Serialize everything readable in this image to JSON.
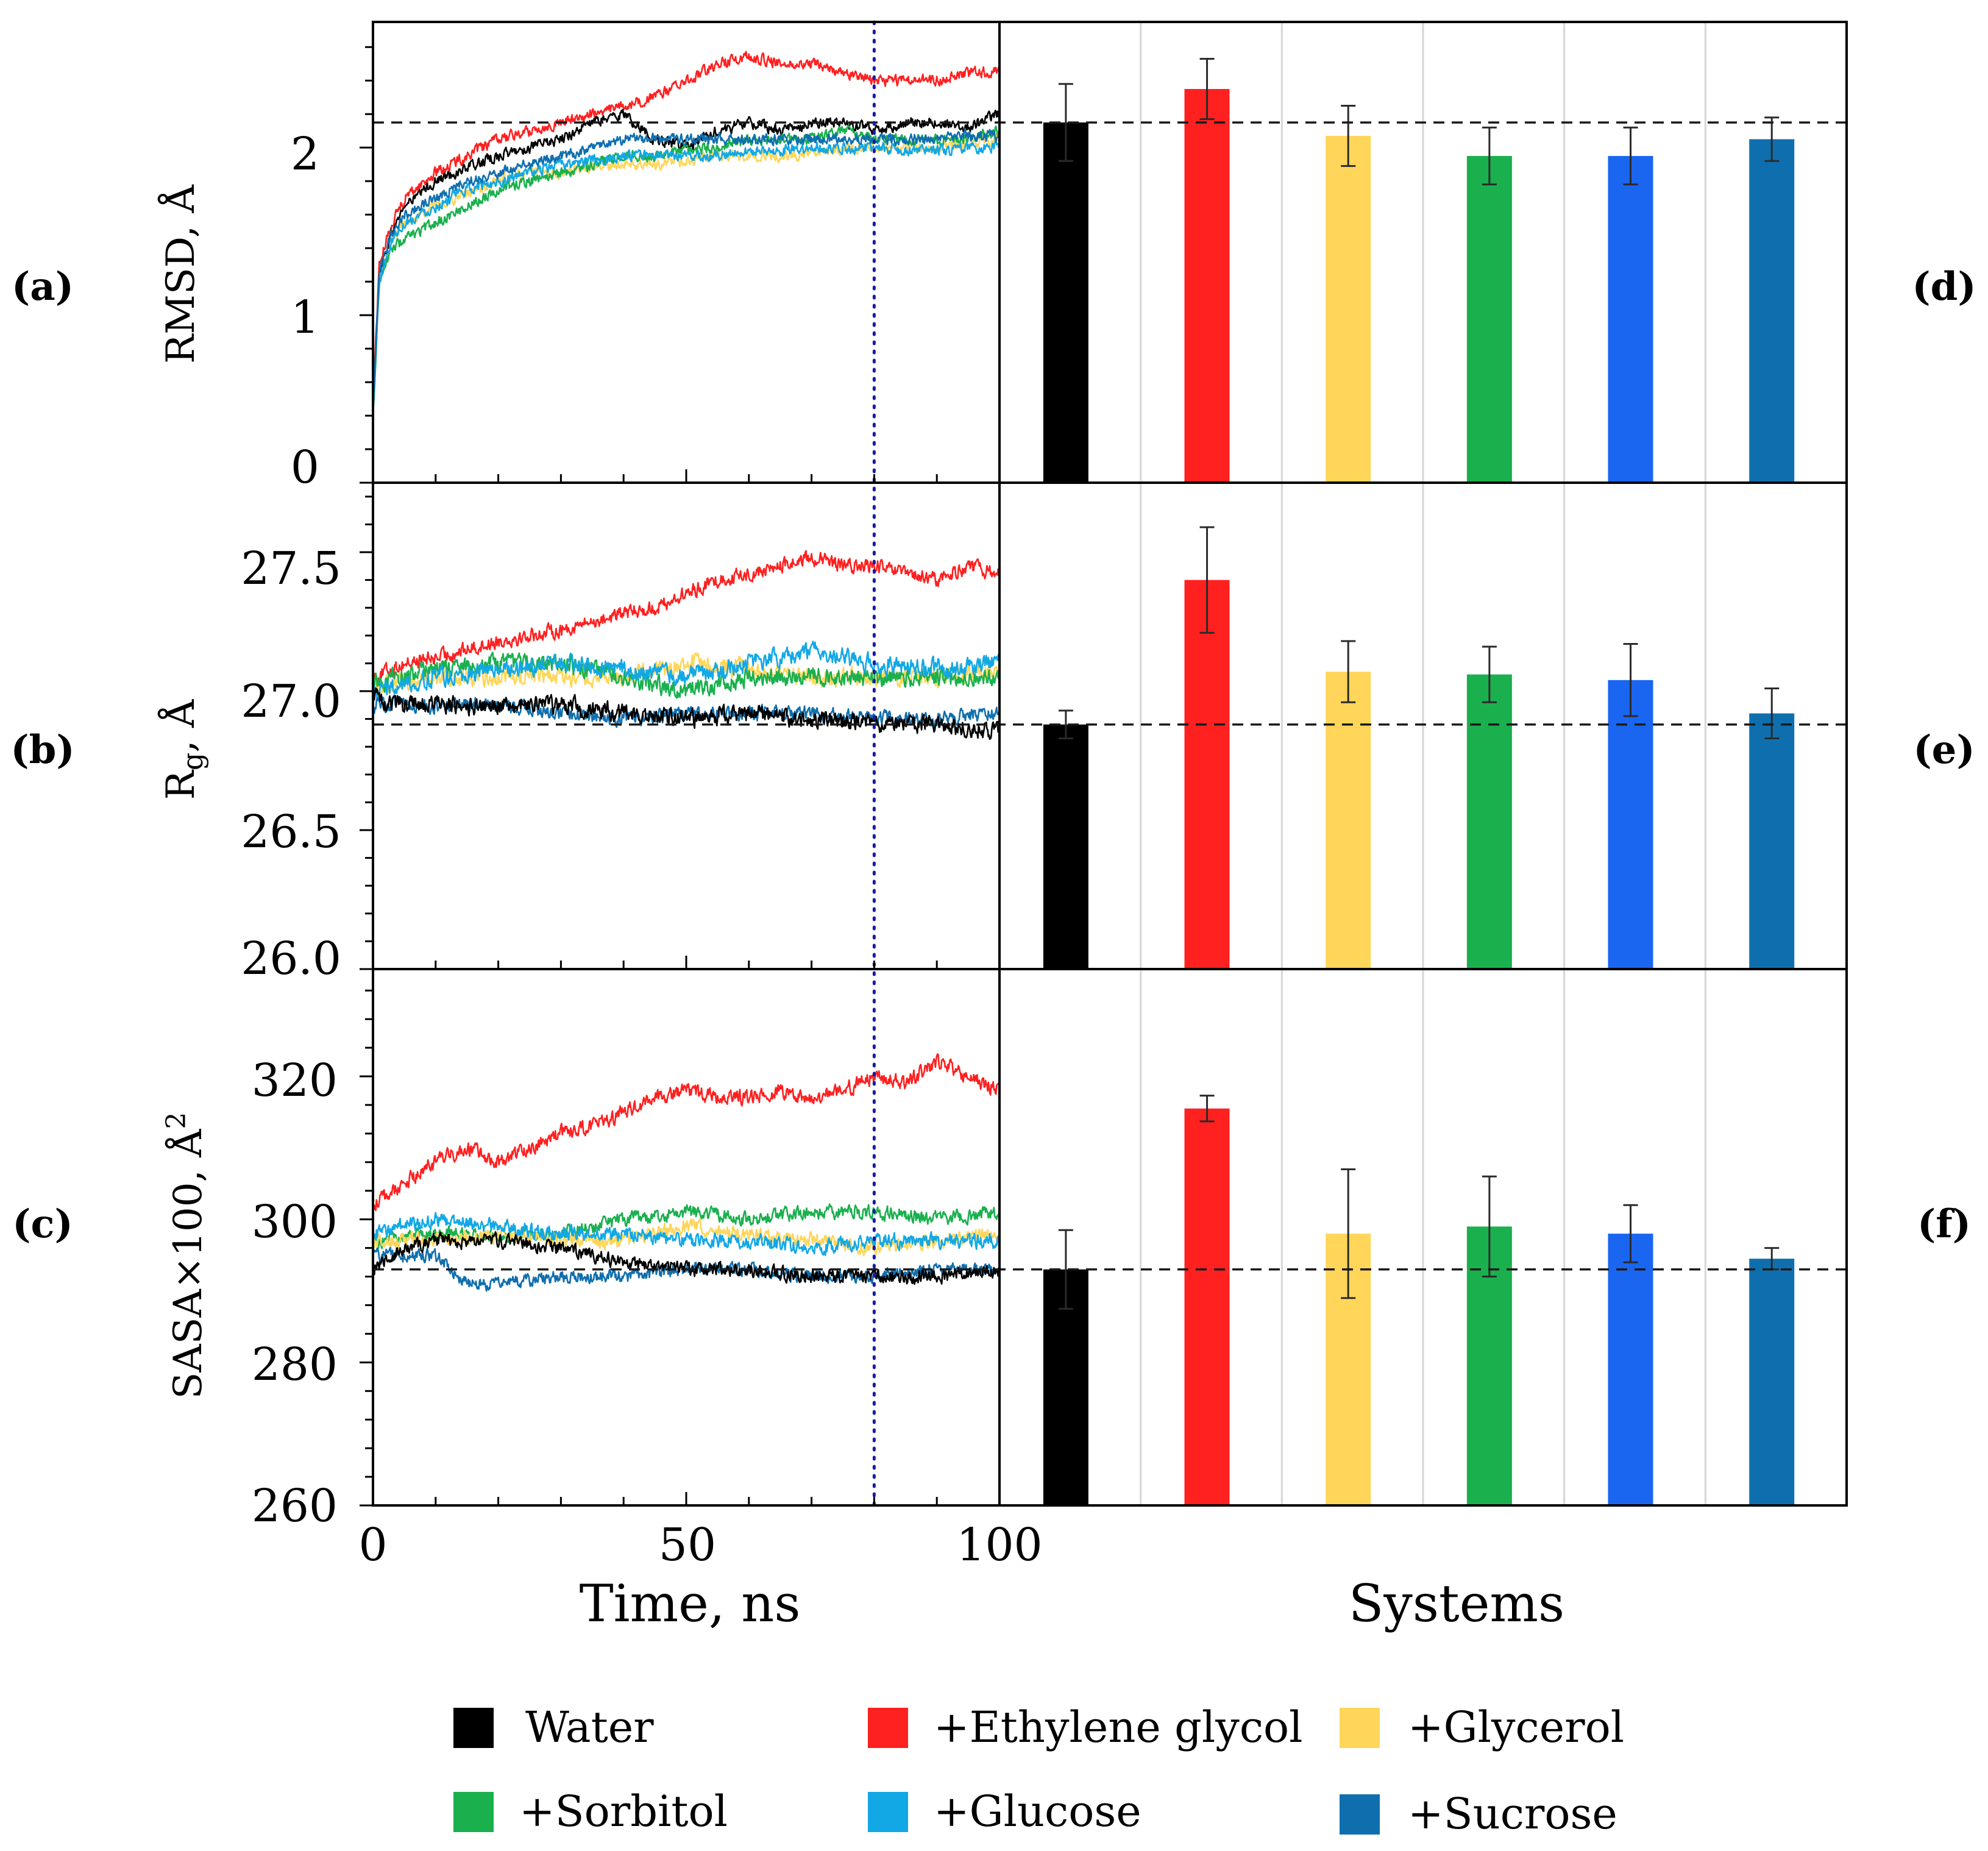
{
  "legend": [
    {
      "key": "water",
      "label": "Water",
      "color": "#000000"
    },
    {
      "key": "eg",
      "label": "+Ethylene glycol",
      "color": "#ff2020"
    },
    {
      "key": "glycerol",
      "label": "+Glycerol",
      "color": "#ffd65a"
    },
    {
      "key": "sorbitol",
      "label": "+Sorbitol",
      "color": "#1ab04e"
    },
    {
      "key": "glucose",
      "label": "+Glucose",
      "color": "#12a8e6"
    },
    {
      "key": "sucrose",
      "label": "+Sucrose",
      "color": "#0f6fae"
    }
  ],
  "bar_colors": [
    "#000000",
    "#ff2020",
    "#ffd65a",
    "#1ab04e",
    "#1a66f0",
    "#0f6fae"
  ],
  "x_axis": {
    "label": "Time, ns",
    "ticks": [
      "0",
      "50",
      "100"
    ],
    "tick_values": [
      0,
      50,
      100
    ],
    "range": [
      0,
      100
    ],
    "vline": 80
  },
  "bar_axis": {
    "label": "Systems"
  },
  "chart_data": [
    {
      "id": "a",
      "panel_label": "(a)",
      "type": "line",
      "ylabel": "RMSD, Å",
      "ylim": [
        0,
        2.75
      ],
      "yticks": [
        0,
        1,
        2
      ],
      "ytick_labels": [
        "0",
        "1",
        "2"
      ],
      "ref_line": 2.15,
      "series": [
        {
          "name": "Water",
          "x": [
            0,
            1,
            3,
            5,
            10,
            15,
            20,
            25,
            30,
            35,
            40,
            45,
            50,
            55,
            60,
            65,
            70,
            75,
            80,
            85,
            90,
            95,
            100
          ],
          "y": [
            0.4,
            1.25,
            1.5,
            1.65,
            1.8,
            1.88,
            1.95,
            2.0,
            2.05,
            2.15,
            2.2,
            2.05,
            2.0,
            2.1,
            2.15,
            2.1,
            2.15,
            2.15,
            2.1,
            2.15,
            2.15,
            2.12,
            2.2
          ],
          "noise": 0.05
        },
        {
          "name": "+Ethylene glycol",
          "x": [
            0,
            1,
            3,
            5,
            10,
            15,
            20,
            25,
            30,
            35,
            40,
            45,
            50,
            55,
            60,
            65,
            70,
            75,
            80,
            85,
            90,
            95,
            100
          ],
          "y": [
            0.5,
            1.3,
            1.55,
            1.7,
            1.85,
            1.95,
            2.05,
            2.1,
            2.15,
            2.2,
            2.25,
            2.3,
            2.4,
            2.5,
            2.55,
            2.5,
            2.5,
            2.45,
            2.4,
            2.4,
            2.4,
            2.45,
            2.45
          ],
          "noise": 0.05
        },
        {
          "name": "+Glycerol",
          "x": [
            0,
            1,
            3,
            5,
            10,
            15,
            20,
            25,
            30,
            35,
            40,
            45,
            50,
            55,
            60,
            65,
            70,
            75,
            80,
            85,
            90,
            95,
            100
          ],
          "y": [
            0.4,
            1.2,
            1.45,
            1.55,
            1.65,
            1.72,
            1.8,
            1.85,
            1.85,
            1.88,
            1.9,
            1.9,
            1.92,
            1.95,
            1.95,
            1.95,
            1.97,
            1.98,
            2.0,
            2.0,
            2.0,
            2.02,
            2.05
          ],
          "noise": 0.05
        },
        {
          "name": "+Sorbitol",
          "x": [
            0,
            1,
            3,
            5,
            10,
            15,
            20,
            25,
            30,
            35,
            40,
            45,
            50,
            55,
            60,
            65,
            70,
            75,
            80,
            85,
            90,
            95,
            100
          ],
          "y": [
            0.4,
            1.2,
            1.4,
            1.45,
            1.55,
            1.65,
            1.75,
            1.8,
            1.85,
            1.9,
            1.95,
            1.95,
            1.98,
            2.0,
            2.05,
            2.05,
            2.05,
            2.1,
            2.05,
            2.05,
            2.05,
            2.05,
            2.1
          ],
          "noise": 0.05
        },
        {
          "name": "+Glucose",
          "x": [
            0,
            1,
            3,
            5,
            10,
            15,
            20,
            25,
            30,
            35,
            40,
            45,
            50,
            55,
            60,
            65,
            70,
            75,
            80,
            85,
            90,
            95,
            100
          ],
          "y": [
            0.4,
            1.2,
            1.45,
            1.55,
            1.65,
            1.75,
            1.8,
            1.85,
            1.9,
            1.92,
            1.95,
            1.95,
            1.95,
            1.95,
            1.98,
            1.98,
            2.0,
            2.0,
            2.0,
            1.98,
            1.98,
            2.0,
            2.0
          ],
          "noise": 0.05
        },
        {
          "name": "+Sucrose",
          "x": [
            0,
            1,
            3,
            5,
            10,
            15,
            20,
            25,
            30,
            35,
            40,
            45,
            50,
            55,
            60,
            65,
            70,
            75,
            80,
            85,
            90,
            95,
            100
          ],
          "y": [
            0.4,
            1.25,
            1.5,
            1.6,
            1.7,
            1.8,
            1.85,
            1.9,
            1.95,
            2.0,
            2.05,
            2.05,
            2.05,
            2.05,
            2.05,
            2.05,
            2.05,
            2.05,
            2.05,
            2.05,
            2.05,
            2.07,
            2.07
          ],
          "noise": 0.05
        }
      ]
    },
    {
      "id": "b",
      "panel_label": "(b)",
      "type": "line",
      "ylabel": "Rg, Å",
      "ylabel_main": "R",
      "ylabel_sub": "g",
      "ylabel_tail": ", Å",
      "ylim": [
        26.0,
        27.75
      ],
      "yticks": [
        26.0,
        26.5,
        27.0,
        27.5
      ],
      "ytick_labels": [
        "26.0",
        "26.5",
        "27.0",
        "27.5"
      ],
      "ref_line": 26.88,
      "series": [
        {
          "name": "+Ethylene glycol",
          "x": [
            0,
            5,
            10,
            15,
            20,
            25,
            30,
            35,
            40,
            45,
            50,
            55,
            60,
            65,
            70,
            75,
            80,
            85,
            90,
            95,
            100
          ],
          "y": [
            27.05,
            27.1,
            27.12,
            27.15,
            27.18,
            27.2,
            27.22,
            27.25,
            27.28,
            27.3,
            27.35,
            27.4,
            27.42,
            27.45,
            27.48,
            27.45,
            27.45,
            27.42,
            27.4,
            27.45,
            27.42
          ],
          "noise": 0.04
        },
        {
          "name": "+Glycerol",
          "x": [
            0,
            10,
            20,
            30,
            40,
            50,
            60,
            70,
            80,
            90,
            100
          ],
          "y": [
            27.02,
            27.05,
            27.05,
            27.05,
            27.05,
            27.1,
            27.08,
            27.05,
            27.05,
            27.05,
            27.08
          ],
          "noise": 0.05
        },
        {
          "name": "+Sorbitol",
          "x": [
            0,
            10,
            20,
            30,
            40,
            50,
            60,
            70,
            80,
            90,
            100
          ],
          "y": [
            27.03,
            27.08,
            27.1,
            27.1,
            27.05,
            27.0,
            27.05,
            27.05,
            27.05,
            27.05,
            27.05
          ],
          "noise": 0.05
        },
        {
          "name": "+Glucose",
          "x": [
            0,
            10,
            20,
            30,
            40,
            50,
            60,
            70,
            80,
            90,
            100
          ],
          "y": [
            27.0,
            27.05,
            27.08,
            27.1,
            27.08,
            27.05,
            27.1,
            27.15,
            27.1,
            27.08,
            27.1
          ],
          "noise": 0.05
        },
        {
          "name": "+Sucrose",
          "x": [
            0,
            10,
            20,
            30,
            40,
            50,
            60,
            70,
            80,
            90,
            100
          ],
          "y": [
            26.95,
            26.95,
            26.95,
            26.92,
            26.9,
            26.92,
            26.92,
            26.92,
            26.9,
            26.9,
            26.92
          ],
          "noise": 0.04
        },
        {
          "name": "Water",
          "x": [
            0,
            5,
            10,
            20,
            30,
            40,
            50,
            60,
            70,
            80,
            90,
            100
          ],
          "y": [
            26.98,
            26.95,
            26.95,
            26.95,
            26.95,
            26.92,
            26.9,
            26.92,
            26.9,
            26.88,
            26.88,
            26.85
          ],
          "noise": 0.05
        }
      ]
    },
    {
      "id": "c",
      "panel_label": "(c)",
      "type": "line",
      "ylabel": "SASA×100, Å²",
      "ylabel_main": "SASA×100, Å",
      "ylabel_sup": "2",
      "ylim": [
        260,
        335
      ],
      "yticks": [
        260,
        280,
        300,
        320
      ],
      "ytick_labels": [
        "260",
        "280",
        "300",
        "320"
      ],
      "ref_line": 293,
      "series": [
        {
          "name": "+Ethylene glycol",
          "x": [
            0,
            5,
            10,
            15,
            20,
            25,
            30,
            35,
            40,
            45,
            50,
            55,
            60,
            65,
            70,
            75,
            80,
            85,
            90,
            95,
            100
          ],
          "y": [
            302,
            305,
            308,
            310,
            308,
            310,
            312,
            313,
            315,
            317,
            318,
            317,
            317,
            318,
            317,
            318,
            320,
            319,
            322,
            320,
            318
          ],
          "noise": 1.6
        },
        {
          "name": "+Sorbitol",
          "x": [
            0,
            10,
            20,
            30,
            40,
            50,
            60,
            70,
            80,
            90,
            100
          ],
          "y": [
            297,
            298,
            298,
            298,
            300,
            301,
            300,
            301,
            301,
            300,
            301
          ],
          "noise": 1.5
        },
        {
          "name": "+Glycerol",
          "x": [
            0,
            10,
            20,
            30,
            40,
            50,
            60,
            70,
            80,
            90,
            100
          ],
          "y": [
            297,
            297,
            298,
            297,
            297,
            299,
            298,
            297,
            296,
            297,
            298
          ],
          "noise": 1.6
        },
        {
          "name": "+Glucose",
          "x": [
            0,
            10,
            20,
            30,
            40,
            50,
            60,
            70,
            80,
            90,
            100
          ],
          "y": [
            298,
            300,
            299,
            298,
            298,
            297,
            297,
            296,
            297,
            297,
            297
          ],
          "noise": 1.6
        },
        {
          "name": "+Sucrose",
          "x": [
            0,
            10,
            15,
            20,
            30,
            40,
            50,
            60,
            70,
            80,
            90,
            100
          ],
          "y": [
            295,
            295,
            291,
            291,
            292,
            292,
            293,
            293,
            292,
            292,
            293,
            293
          ],
          "noise": 1.4
        },
        {
          "name": "Water",
          "x": [
            0,
            5,
            10,
            20,
            30,
            40,
            50,
            60,
            70,
            80,
            90,
            100
          ],
          "y": [
            293,
            296,
            297,
            297,
            296,
            294,
            293,
            293,
            292,
            292,
            292,
            293
          ],
          "noise": 1.5
        }
      ]
    },
    {
      "id": "d",
      "panel_label": "(d)",
      "type": "bar",
      "ylim": [
        0,
        2.75
      ],
      "ref_line": 2.15,
      "categories": [
        "Water",
        "+Ethylene glycol",
        "+Glycerol",
        "+Sorbitol",
        "+Glucose",
        "+Sucrose"
      ],
      "values": [
        2.15,
        2.35,
        2.07,
        1.95,
        1.95,
        2.05
      ],
      "errors": [
        0.23,
        0.18,
        0.18,
        0.17,
        0.17,
        0.13
      ]
    },
    {
      "id": "e",
      "panel_label": "(e)",
      "type": "bar",
      "ylim": [
        26.0,
        27.75
      ],
      "ref_line": 26.88,
      "categories": [
        "Water",
        "+Ethylene glycol",
        "+Glycerol",
        "+Sorbitol",
        "+Glucose",
        "+Sucrose"
      ],
      "values": [
        26.88,
        27.4,
        27.07,
        27.06,
        27.04,
        26.92
      ],
      "errors": [
        0.05,
        0.19,
        0.11,
        0.1,
        0.13,
        0.09
      ]
    },
    {
      "id": "f",
      "panel_label": "(f)",
      "type": "bar",
      "ylim": [
        260,
        335
      ],
      "ref_line": 293,
      "categories": [
        "Water",
        "+Ethylene glycol",
        "+Glycerol",
        "+Sorbitol",
        "+Glucose",
        "+Sucrose"
      ],
      "values": [
        293,
        315.5,
        298,
        299,
        298,
        294.5
      ],
      "errors": [
        5.5,
        1.8,
        9.0,
        7.0,
        4.0,
        1.5
      ]
    }
  ]
}
